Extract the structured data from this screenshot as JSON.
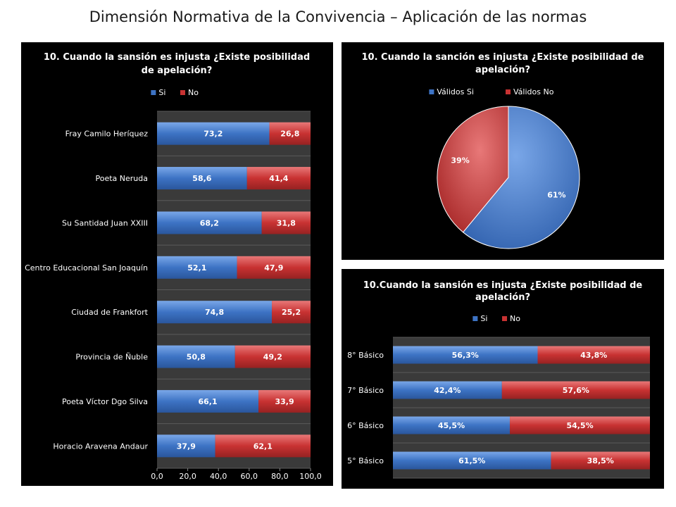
{
  "page_title": "Dimensión Normativa de la Convivencia – Aplicación de las normas",
  "colors": {
    "si": "#3d73c4",
    "no": "#c83232",
    "panel_bg": "#000000",
    "plot_bg": "#3a3a3a"
  },
  "chart_data": [
    {
      "type": "bar",
      "orientation": "horizontal-stacked",
      "title": "10. Cuando la sansión es injusta ¿Existe posibilidad de apelación?",
      "title_lines": [
        "10. Cuando la sansión es injusta ¿Existe posibilidad",
        "de apelación?"
      ],
      "legend_position": "top",
      "categories": [
        "Fray Camilo Heríquez",
        "Poeta Neruda",
        "Su Santidad Juan XXIII",
        "Centro Educacional San Joaquín",
        "Ciudad de Frankfort",
        "Provincia de Ñuble",
        "Poeta Víctor Dgo Silva",
        "Horacio Aravena Andaur"
      ],
      "series": [
        {
          "name": "Si",
          "values": [
            73.2,
            58.6,
            68.2,
            52.1,
            74.8,
            50.8,
            66.1,
            37.9
          ],
          "labels": [
            "73,2",
            "58,6",
            "68,2",
            "52,1",
            "74,8",
            "50,8",
            "66,1",
            "37,9"
          ]
        },
        {
          "name": "No",
          "values": [
            26.8,
            41.4,
            31.8,
            47.9,
            25.2,
            49.2,
            33.9,
            62.1
          ],
          "labels": [
            "26,8",
            "41,4",
            "31,8",
            "47,9",
            "25,2",
            "49,2",
            "33,9",
            "62,1"
          ]
        }
      ],
      "xlim": [
        0,
        100
      ],
      "xticks": [
        "0,0",
        "20,0",
        "40,0",
        "60,0",
        "80,0",
        "100,0"
      ]
    },
    {
      "type": "pie",
      "title": "10. Cuando la sanción es injusta ¿Existe posibilidad de apelación?",
      "title_lines": [
        "10. Cuando la sanción es injusta ¿Existe posibilidad de",
        "apelación?"
      ],
      "legend_position": "top",
      "slices": [
        {
          "name": "Válidos Si",
          "value": 61,
          "label": "61%"
        },
        {
          "name": "Válidos No",
          "value": 39,
          "label": "39%"
        }
      ]
    },
    {
      "type": "bar",
      "orientation": "horizontal-stacked",
      "title": "10.Cuando la sansión es injusta ¿Existe posibilidad de apelación?",
      "title_lines": [
        "10.Cuando la sansión es injusta ¿Existe posibilidad de",
        "apelación?"
      ],
      "legend_position": "top",
      "categories": [
        "8° Básico",
        "7° Básico",
        "6° Básico",
        "5° Básico"
      ],
      "series": [
        {
          "name": "Si",
          "values": [
            56.3,
            42.4,
            45.5,
            61.5
          ],
          "labels": [
            "56,3%",
            "42,4%",
            "45,5%",
            "61,5%"
          ]
        },
        {
          "name": "No",
          "values": [
            43.8,
            57.6,
            54.5,
            38.5
          ],
          "labels": [
            "43,8%",
            "57,6%",
            "54,5%",
            "38,5%"
          ]
        }
      ],
      "xlim": [
        0,
        100
      ]
    }
  ]
}
